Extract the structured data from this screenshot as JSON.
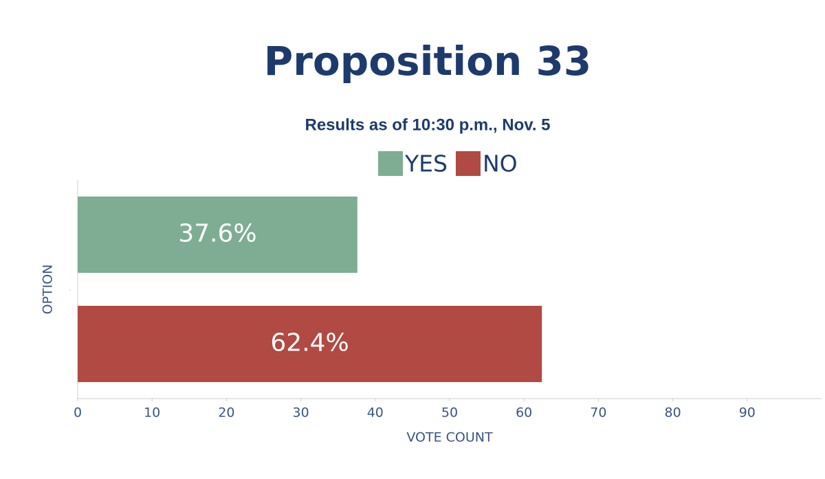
{
  "chart_data": {
    "type": "bar",
    "orientation": "horizontal",
    "title": "Proposition 33",
    "subtitle": "Results as of 10:30 p.m., Nov. 5",
    "xlabel": "VOTE COUNT",
    "ylabel": "OPTION",
    "categories": [
      null
    ],
    "series": [
      {
        "name": "YES",
        "color": "#7fad93",
        "values": [
          37.6
        ],
        "value_labels": [
          "37.6%"
        ]
      },
      {
        "name": "NO",
        "color": "#b04a42",
        "values": [
          62.4
        ],
        "value_labels": [
          "62.4%"
        ]
      }
    ],
    "xlim": [
      0,
      100
    ],
    "xticks": [
      0,
      10,
      20,
      30,
      40,
      50,
      60,
      70,
      80,
      90
    ],
    "grid": false
  }
}
